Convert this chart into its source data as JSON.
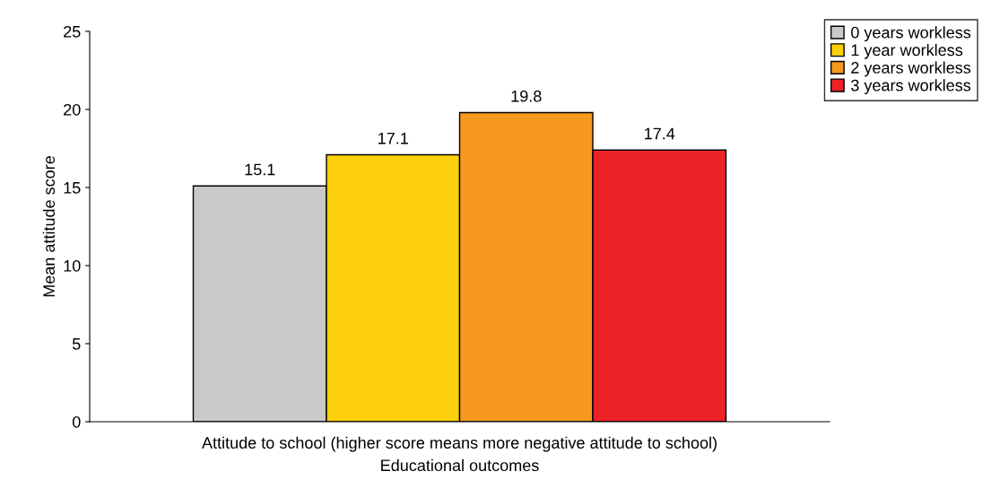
{
  "chart_data": {
    "type": "bar",
    "categories": [
      "Attitude to school (higher score means more negative attitude to school)"
    ],
    "xlabel": "Educational outcomes",
    "ylabel": "Mean attitude score",
    "series": [
      {
        "name": "0 years workless",
        "color": "#c8c9cb",
        "values": [
          15.1
        ]
      },
      {
        "name": "1 year workless",
        "color": "#fccf0a",
        "values": [
          17.1
        ]
      },
      {
        "name": "2 years workless",
        "color": "#f7991e",
        "values": [
          19.8
        ]
      },
      {
        "name": "3 years workless",
        "color": "#ec2227",
        "values": [
          17.4
        ]
      }
    ],
    "ylim": [
      0,
      25
    ],
    "yticks": [
      0,
      5,
      10,
      15,
      20,
      25
    ],
    "data_labels": true,
    "legend": "top right",
    "grid": false
  }
}
